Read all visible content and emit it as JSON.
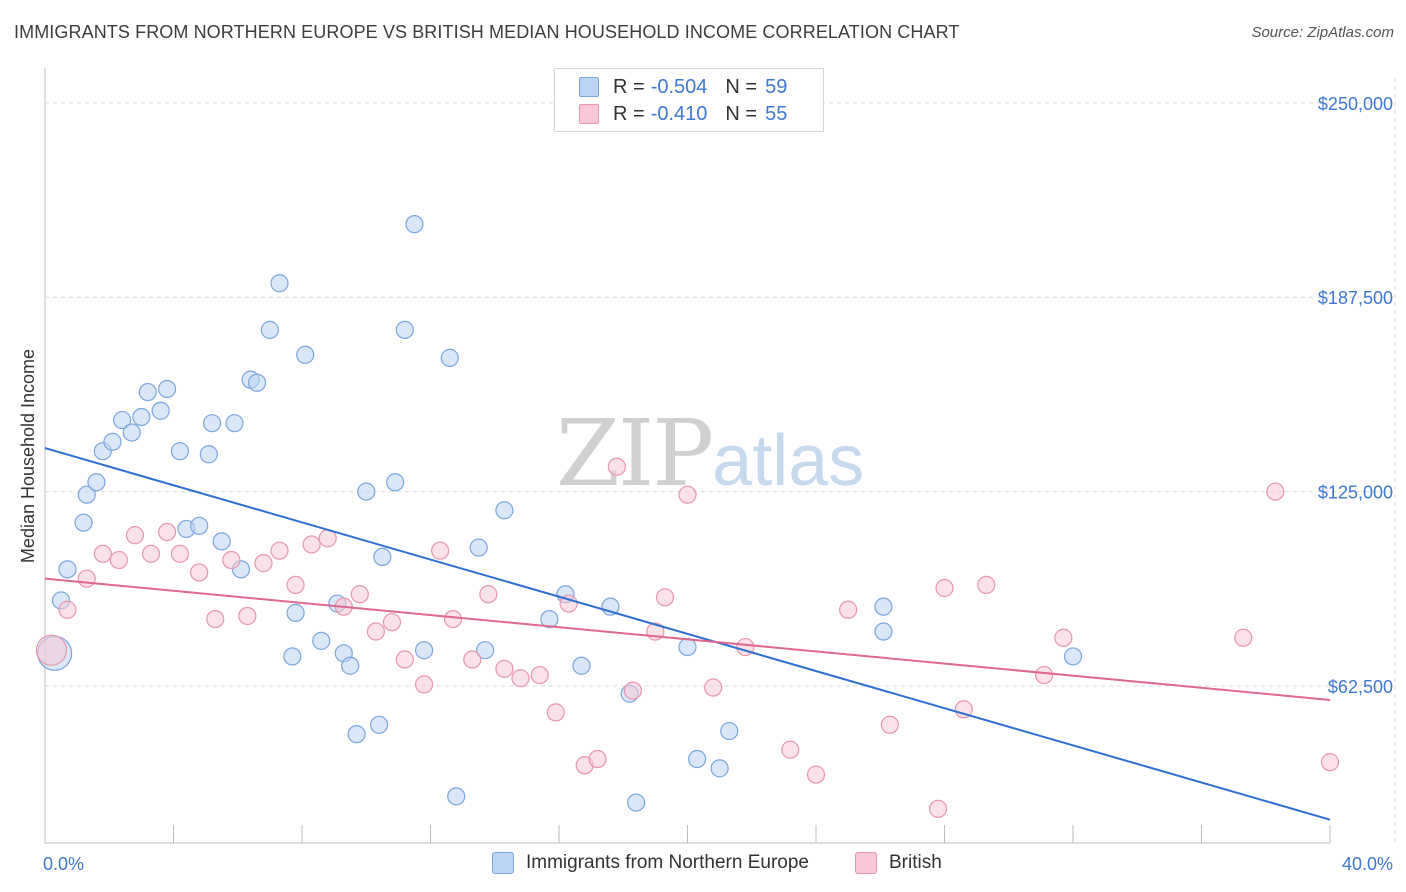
{
  "title": "IMMIGRANTS FROM NORTHERN EUROPE VS BRITISH MEDIAN HOUSEHOLD INCOME CORRELATION CHART",
  "source": "Source: ZipAtlas.com",
  "watermark": {
    "zip": "ZIP",
    "atlas": "atlas"
  },
  "legend_top": {
    "rows": [
      {
        "r_label": "R =",
        "r_value": "-0.504",
        "n_label": "N =",
        "n_value": "59"
      },
      {
        "r_label": "R =",
        "r_value": "-0.410",
        "n_label": "N =",
        "n_value": "55"
      }
    ]
  },
  "legend_bottom": [
    "Immigrants from Northern Europe",
    "British"
  ],
  "colors": {
    "blue_fill": "#bcd4f3",
    "blue_stroke": "#7aa6de",
    "blue_line": "#2d6fd2",
    "pink_fill": "#f8c8d6",
    "pink_stroke": "#e796b0",
    "pink_line": "#e0678f",
    "grid": "#d9d9d9",
    "tick_text": "#3e78d1"
  },
  "chart_data": {
    "type": "scatter",
    "title": "IMMIGRANTS FROM NORTHERN EUROPE VS BRITISH MEDIAN HOUSEHOLD INCOME CORRELATION CHART",
    "xlabel": "",
    "ylabel": "Median Household Income",
    "xlim": [
      0,
      40
    ],
    "ylim": [
      12000,
      258000
    ],
    "x_tick_labels": [
      "0.0%",
      "40.0%"
    ],
    "y_ticks": [
      62500,
      125000,
      187500,
      250000
    ],
    "y_tick_labels": [
      "$62,500",
      "$125,000",
      "$187,500",
      "$250,000"
    ],
    "grid": true,
    "legend_position": "top-center",
    "series": [
      {
        "name": "Immigrants from Northern Europe",
        "r": -0.504,
        "n": 59,
        "trend": {
          "x": [
            0,
            40
          ],
          "y": [
            139000,
            19500
          ]
        },
        "points": [
          [
            0.3,
            73000
          ],
          [
            0.5,
            90000
          ],
          [
            0.7,
            100000
          ],
          [
            1.2,
            115000
          ],
          [
            1.3,
            124000
          ],
          [
            1.6,
            128000
          ],
          [
            1.8,
            138000
          ],
          [
            2.1,
            141000
          ],
          [
            2.4,
            148000
          ],
          [
            2.7,
            144000
          ],
          [
            3.0,
            149000
          ],
          [
            3.2,
            157000
          ],
          [
            3.6,
            151000
          ],
          [
            3.8,
            158000
          ],
          [
            4.2,
            138000
          ],
          [
            4.4,
            113000
          ],
          [
            4.8,
            114000
          ],
          [
            5.1,
            137000
          ],
          [
            5.2,
            147000
          ],
          [
            5.5,
            109000
          ],
          [
            5.9,
            147000
          ],
          [
            6.1,
            100000
          ],
          [
            6.4,
            161000
          ],
          [
            6.6,
            160000
          ],
          [
            7.0,
            177000
          ],
          [
            7.3,
            192000
          ],
          [
            7.7,
            72000
          ],
          [
            7.8,
            86000
          ],
          [
            8.1,
            169000
          ],
          [
            8.6,
            77000
          ],
          [
            9.1,
            89000
          ],
          [
            9.3,
            73000
          ],
          [
            9.5,
            69000
          ],
          [
            9.7,
            47000
          ],
          [
            10.0,
            125000
          ],
          [
            10.4,
            50000
          ],
          [
            10.5,
            104000
          ],
          [
            10.9,
            128000
          ],
          [
            11.2,
            177000
          ],
          [
            11.5,
            211000
          ],
          [
            11.8,
            74000
          ],
          [
            12.6,
            168000
          ],
          [
            12.8,
            27000
          ],
          [
            13.5,
            107000
          ],
          [
            13.7,
            74000
          ],
          [
            14.3,
            119000
          ],
          [
            15.7,
            84000
          ],
          [
            16.2,
            92000
          ],
          [
            16.7,
            69000
          ],
          [
            17.6,
            88000
          ],
          [
            18.2,
            60000
          ],
          [
            18.4,
            25000
          ],
          [
            20.0,
            75000
          ],
          [
            20.3,
            39000
          ],
          [
            21.0,
            36000
          ],
          [
            21.3,
            48000
          ],
          [
            26.1,
            80000
          ],
          [
            26.1,
            88000
          ],
          [
            32.0,
            72000
          ]
        ]
      },
      {
        "name": "British",
        "r": -0.41,
        "n": 55,
        "trend": {
          "x": [
            0,
            40
          ],
          "y": [
            97000,
            58000
          ]
        },
        "points": [
          [
            0.2,
            74000
          ],
          [
            0.7,
            87000
          ],
          [
            1.3,
            97000
          ],
          [
            1.8,
            105000
          ],
          [
            2.3,
            103000
          ],
          [
            2.8,
            111000
          ],
          [
            3.3,
            105000
          ],
          [
            3.8,
            112000
          ],
          [
            4.2,
            105000
          ],
          [
            4.8,
            99000
          ],
          [
            5.3,
            84000
          ],
          [
            5.8,
            103000
          ],
          [
            6.3,
            85000
          ],
          [
            6.8,
            102000
          ],
          [
            7.3,
            106000
          ],
          [
            7.8,
            95000
          ],
          [
            8.3,
            108000
          ],
          [
            8.8,
            110000
          ],
          [
            9.3,
            88000
          ],
          [
            9.8,
            92000
          ],
          [
            10.3,
            80000
          ],
          [
            10.8,
            83000
          ],
          [
            11.2,
            71000
          ],
          [
            11.8,
            63000
          ],
          [
            12.3,
            106000
          ],
          [
            12.7,
            84000
          ],
          [
            13.3,
            71000
          ],
          [
            13.8,
            92000
          ],
          [
            14.3,
            68000
          ],
          [
            14.8,
            65000
          ],
          [
            15.4,
            66000
          ],
          [
            15.9,
            54000
          ],
          [
            16.3,
            89000
          ],
          [
            16.8,
            37000
          ],
          [
            17.2,
            39000
          ],
          [
            17.8,
            133000
          ],
          [
            18.3,
            61000
          ],
          [
            19.0,
            80000
          ],
          [
            19.3,
            91000
          ],
          [
            20.0,
            124000
          ],
          [
            20.8,
            62000
          ],
          [
            21.8,
            75000
          ],
          [
            23.2,
            42000
          ],
          [
            24.0,
            34000
          ],
          [
            25.0,
            87000
          ],
          [
            26.3,
            50000
          ],
          [
            27.8,
            23000
          ],
          [
            28.0,
            94000
          ],
          [
            28.6,
            55000
          ],
          [
            29.3,
            95000
          ],
          [
            31.1,
            66000
          ],
          [
            31.7,
            78000
          ],
          [
            37.3,
            78000
          ],
          [
            38.3,
            125000
          ],
          [
            40.0,
            38000
          ]
        ]
      }
    ]
  }
}
